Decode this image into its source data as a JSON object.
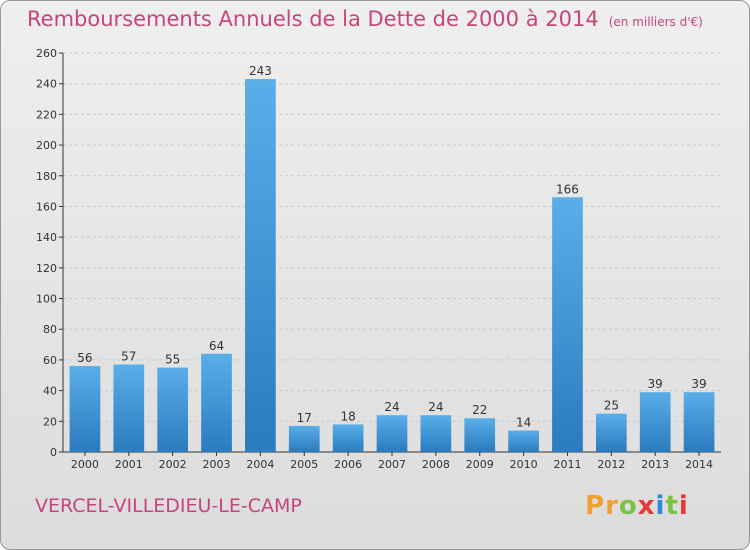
{
  "header": {
    "title": "Remboursements Annuels de la Dette de 2000 à 2014",
    "unit": "(en milliers d'€)"
  },
  "footer": {
    "commune": "VERCEL-VILLEDIEU-LE-CAMP",
    "logo": [
      "P",
      "r",
      "o",
      "x",
      "i",
      "t",
      "i"
    ]
  },
  "colors": {
    "title": "#c7457d",
    "bar_light": "#5aaee8",
    "bar_dark": "#2a7bbf",
    "grid": "#c8c8c8",
    "logo": [
      "#f0a030",
      "#f0a030",
      "#7cc242",
      "#e53935",
      "#2e86de",
      "#7cc242",
      "#e53935"
    ]
  },
  "chart_data": {
    "type": "bar",
    "title": "Remboursements Annuels de la Dette de 2000 à 2014",
    "categories": [
      "2000",
      "2001",
      "2002",
      "2003",
      "2004",
      "2005",
      "2006",
      "2007",
      "2008",
      "2009",
      "2010",
      "2011",
      "2012",
      "2013",
      "2014"
    ],
    "values": [
      56,
      57,
      55,
      64,
      243,
      17,
      18,
      24,
      24,
      22,
      14,
      166,
      25,
      39,
      39
    ],
    "ylim": [
      0,
      260
    ],
    "yticks": [
      0,
      20,
      40,
      60,
      80,
      100,
      120,
      140,
      160,
      180,
      200,
      220,
      240,
      260
    ],
    "grid": true,
    "xlabel": "",
    "ylabel": ""
  }
}
